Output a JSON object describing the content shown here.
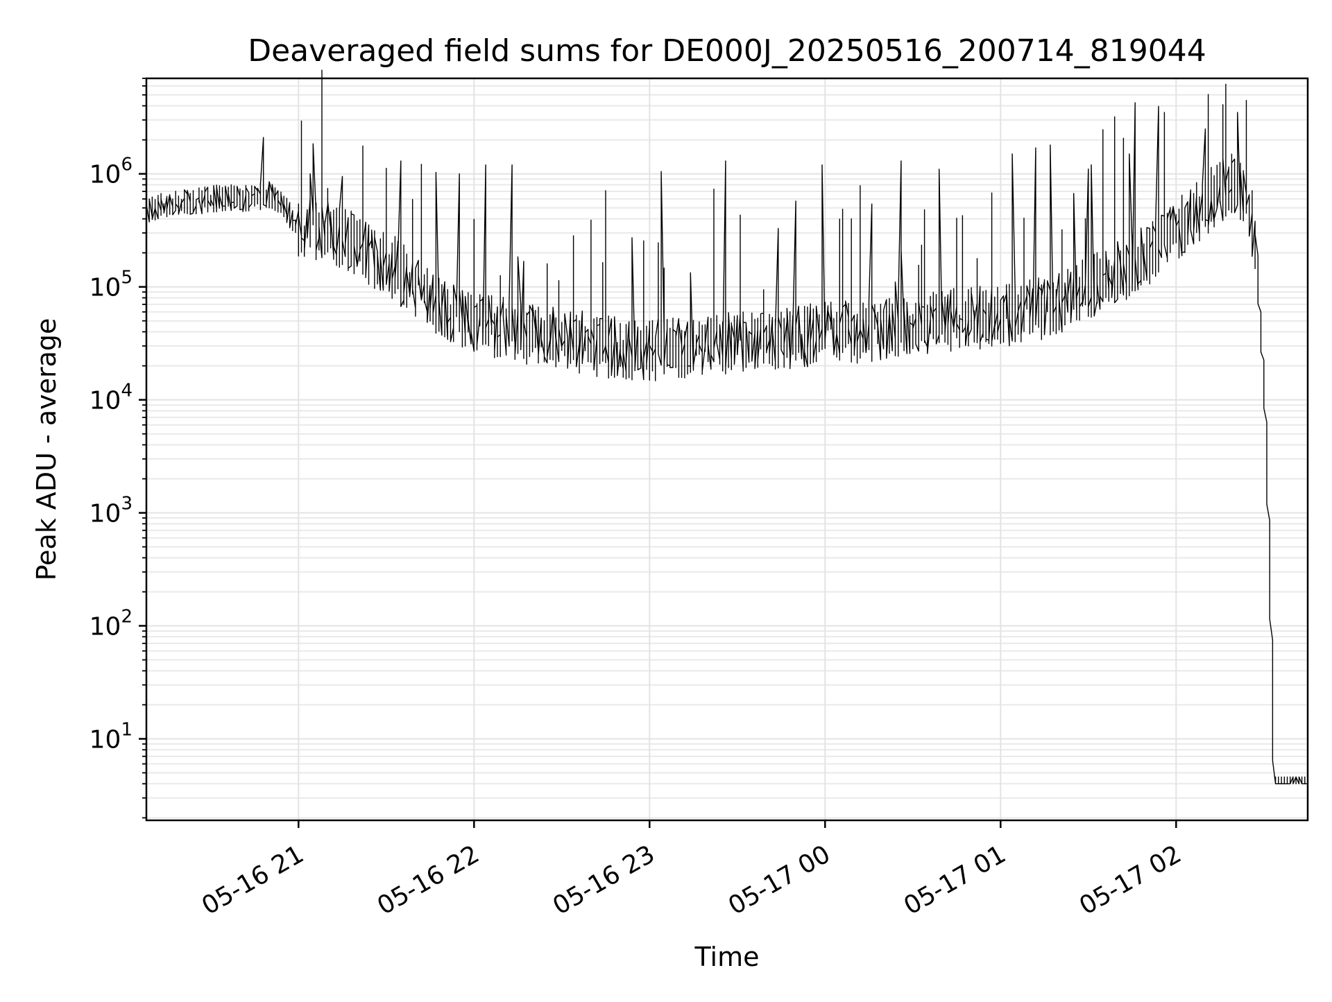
{
  "chart_data": {
    "type": "line",
    "title": "Deaveraged field sums for DE000J_20250516_200714_819044",
    "xlabel": "Time",
    "ylabel": "Peak ADU - average",
    "yscale": "log",
    "grid": "major and minor",
    "x_tick_labels": [
      "05-16 21",
      "05-16 22",
      "05-16 23",
      "05-17 00",
      "05-17 01",
      "05-17 02"
    ],
    "x_ticks": [
      "2025-05-16 21:00",
      "2025-05-16 22:00",
      "2025-05-16 23:00",
      "2025-05-17 00:00",
      "2025-05-17 01:00",
      "2025-05-17 02:00"
    ],
    "xlim": [
      "2025-05-16 20:08",
      "2025-05-17 02:45"
    ],
    "y_tick_labels": [
      {
        "base": "10",
        "exp": "1",
        "value": 10
      },
      {
        "base": "10",
        "exp": "2",
        "value": 100
      },
      {
        "base": "10",
        "exp": "3",
        "value": 1000
      },
      {
        "base": "10",
        "exp": "4",
        "value": 10000
      },
      {
        "base": "10",
        "exp": "5",
        "value": 100000
      },
      {
        "base": "10",
        "exp": "6",
        "value": 1000000
      }
    ],
    "ylim": [
      1.9,
      7000000
    ],
    "series": [
      {
        "points": [
          [
            "2025-05-16 20:08",
            450000
          ],
          [
            "2025-05-16 20:15",
            520000
          ],
          [
            "2025-05-16 20:25",
            560000
          ],
          [
            "2025-05-16 20:35",
            600000
          ],
          [
            "2025-05-16 20:45",
            580000
          ],
          [
            "2025-05-16 20:50",
            650000
          ],
          [
            "2025-05-16 20:55",
            550000
          ],
          [
            "2025-05-16 21:00",
            320000
          ],
          [
            "2025-05-16 21:10",
            300000
          ],
          [
            "2025-05-16 21:20",
            220000
          ],
          [
            "2025-05-16 21:30",
            150000
          ],
          [
            "2025-05-16 21:40",
            100000
          ],
          [
            "2025-05-16 21:50",
            60000
          ],
          [
            "2025-05-16 22:00",
            45000
          ],
          [
            "2025-05-16 22:15",
            38000
          ],
          [
            "2025-05-16 22:30",
            32000
          ],
          [
            "2025-05-16 22:45",
            28000
          ],
          [
            "2025-05-16 23:00",
            26000
          ],
          [
            "2025-05-16 23:15",
            28000
          ],
          [
            "2025-05-16 23:30",
            30000
          ],
          [
            "2025-05-16 23:45",
            32000
          ],
          [
            "2025-05-17 00:00",
            36000
          ],
          [
            "2025-05-17 00:15",
            38000
          ],
          [
            "2025-05-17 00:30",
            42000
          ],
          [
            "2025-05-17 00:45",
            48000
          ],
          [
            "2025-05-17 01:00",
            52000
          ],
          [
            "2025-05-17 01:15",
            60000
          ],
          [
            "2025-05-17 01:30",
            90000
          ],
          [
            "2025-05-17 01:45",
            140000
          ],
          [
            "2025-05-17 01:55",
            220000
          ],
          [
            "2025-05-17 02:05",
            380000
          ],
          [
            "2025-05-17 02:15",
            650000
          ],
          [
            "2025-05-17 02:20",
            800000
          ],
          [
            "2025-05-17 02:25",
            600000
          ],
          [
            "2025-05-17 02:28",
            200000
          ],
          [
            "2025-05-17 02:31",
            8000
          ],
          [
            "2025-05-17 02:33",
            100
          ],
          [
            "2025-05-17 02:34",
            4
          ],
          [
            "2025-05-17 02:45",
            4
          ]
        ],
        "spikes": [
          [
            "2025-05-16 20:48",
            2100000
          ],
          [
            "2025-05-16 21:05",
            1000000
          ],
          [
            "2025-05-16 21:15",
            950000
          ],
          [
            "2025-05-16 21:35",
            1300000
          ],
          [
            "2025-05-16 21:55",
            1000000
          ],
          [
            "2025-05-16 22:04",
            1200000
          ],
          [
            "2025-05-16 22:13",
            1200000
          ],
          [
            "2025-05-16 23:05",
            1050000
          ],
          [
            "2025-05-16 23:26",
            1300000
          ],
          [
            "2025-05-17 00:00",
            1200000
          ],
          [
            "2025-05-17 00:26",
            1300000
          ],
          [
            "2025-05-17 00:40",
            1100000
          ],
          [
            "2025-05-17 01:05",
            1500000
          ],
          [
            "2025-05-17 01:12",
            1700000
          ],
          [
            "2025-05-17 01:18",
            1800000
          ],
          [
            "2025-05-17 01:45",
            1500000
          ],
          [
            "2025-05-17 02:10",
            2500000
          ],
          [
            "2025-05-17 02:22",
            3500000
          ]
        ]
      }
    ]
  }
}
